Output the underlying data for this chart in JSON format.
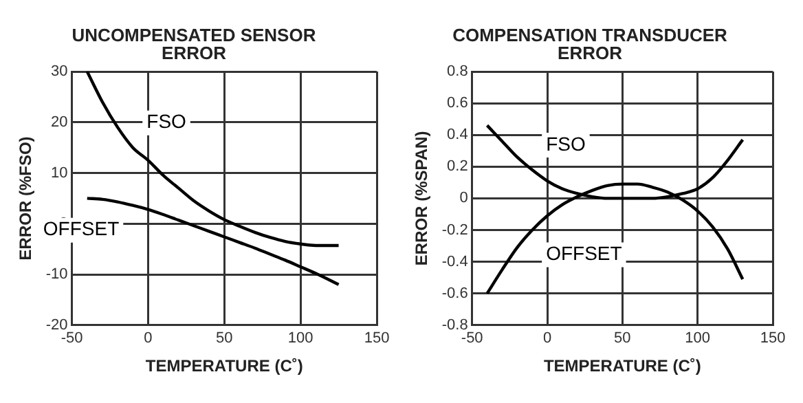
{
  "chart_data": [
    {
      "type": "line",
      "title": "UNCOMPENSATED SENSOR ERROR",
      "xlabel": "TEMPERATURE (C˚)",
      "ylabel": "ERROR (%FSO)",
      "xlim": [
        -50,
        150
      ],
      "xticks": [
        -50,
        0,
        50,
        100,
        150
      ],
      "ylim": [
        -20,
        30
      ],
      "yticks": [
        -20,
        -10,
        0,
        10,
        20,
        30
      ],
      "grid": true,
      "legend": false,
      "marker": "none",
      "line_style": "solid",
      "series": [
        {
          "name": "FSO",
          "color": "#000000",
          "x": [
            -40,
            -30,
            -20,
            -10,
            0,
            10,
            20,
            30,
            40,
            50,
            60,
            70,
            80,
            90,
            100,
            110,
            125
          ],
          "values": [
            30,
            24,
            19,
            15,
            12.5,
            9.5,
            7,
            4.5,
            2.5,
            0.8,
            -0.5,
            -1.7,
            -2.7,
            -3.5,
            -4,
            -4.3,
            -4.3
          ]
        },
        {
          "name": "OFFSET",
          "color": "#000000",
          "x": [
            -40,
            -30,
            -20,
            -10,
            0,
            10,
            20,
            30,
            40,
            50,
            60,
            70,
            80,
            90,
            100,
            110,
            125
          ],
          "values": [
            5,
            4.8,
            4.3,
            3.6,
            2.8,
            1.8,
            0.7,
            -0.4,
            -1.5,
            -2.6,
            -3.7,
            -4.8,
            -6,
            -7.2,
            -8.5,
            -9.8,
            -12
          ]
        }
      ]
    },
    {
      "type": "line",
      "title": "COMPENSATION TRANSDUCER ERROR",
      "xlabel": "TEMPERATURE (C˚)",
      "ylabel": "ERROR (%SPAN)",
      "xlim": [
        -50,
        150
      ],
      "xticks": [
        -50,
        0,
        50,
        100,
        150
      ],
      "ylim": [
        -0.8,
        0.8
      ],
      "yticks": [
        -0.8,
        -0.6,
        -0.4,
        -0.2,
        0,
        0.2,
        0.4,
        0.6,
        0.8
      ],
      "grid": true,
      "legend": false,
      "marker": "none",
      "line_style": "solid",
      "series": [
        {
          "name": "FSO",
          "color": "#000000",
          "x": [
            -40,
            -30,
            -20,
            -10,
            0,
            10,
            20,
            30,
            40,
            50,
            60,
            70,
            80,
            90,
            100,
            110,
            120,
            130
          ],
          "values": [
            0.46,
            0.36,
            0.26,
            0.18,
            0.11,
            0.06,
            0.03,
            0.01,
            0,
            0,
            0,
            0,
            0.01,
            0.03,
            0.06,
            0.13,
            0.24,
            0.37
          ]
        },
        {
          "name": "OFFSET",
          "color": "#000000",
          "x": [
            -40,
            -30,
            -20,
            -10,
            0,
            10,
            20,
            30,
            40,
            50,
            60,
            70,
            80,
            90,
            100,
            110,
            120,
            130
          ],
          "values": [
            -0.6,
            -0.45,
            -0.31,
            -0.2,
            -0.11,
            -0.04,
            0.01,
            0.05,
            0.08,
            0.09,
            0.09,
            0.07,
            0.04,
            -0.01,
            -0.08,
            -0.18,
            -0.32,
            -0.51
          ]
        }
      ]
    }
  ]
}
